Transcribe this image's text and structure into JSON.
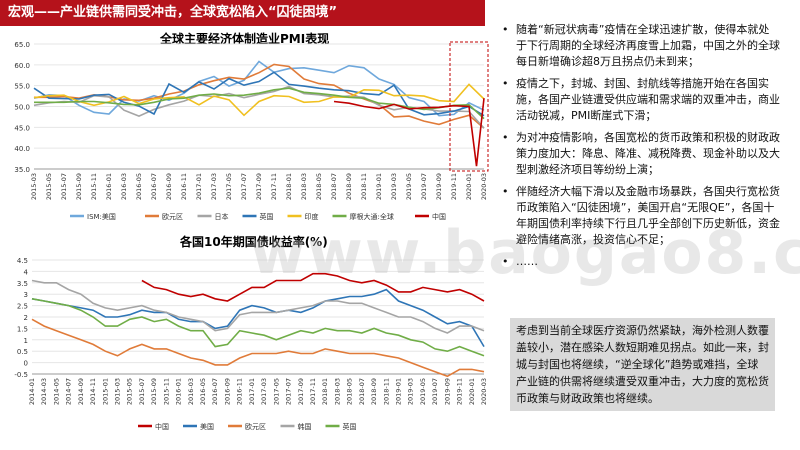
{
  "header": {
    "title": "宏观——产业链供需同受冲击，全球宽松陷入“囚徒困境”"
  },
  "watermark": "www.baogao8.com",
  "bullets": [
    "随着“新冠状病毒”疫情在全球迅速扩散，使得本就处于下行周期的全球经济再度雪上加霜，中国之外的全球每日新增确诊超8万且拐点仍未到来；",
    "疫情之下，封城、封国、封航线等措施开始在各国实施，各国产业链遭受供应端和需求端的双重冲击，商业活动锐减，PMI断崖式下滑；",
    "为对冲疫情影响，各国宽松的货币政策和积极的财政政策力度加大：降息、降准、减税降费、现金补助以及大型刺激经济项目等纷纷上演；",
    "伴随经济大幅下滑以及金融市场暴跌，各国央行宽松货币政策陷入“囚徒困境”，美国开启“无限QE”，各国十年期国债利率持续下行且几乎全部创下历史新低，资金避险情绪高涨，投资信心不足；",
    "……"
  ],
  "summary": "考虑到当前全球医疗资源仍然紧缺，海外检测人数覆盖较小，潜在感染人数短期难见拐点。如此一来，封城与封国也将继续，“逆全球化”趋势或难挡，全球产业链的供需将继续遭受双重冲击，大力度的宽松货币政策与财政政策也将继续。",
  "colors": {
    "brand": "#b5121b",
    "summary_bg": "#d9d9d9"
  },
  "chart_data": [
    {
      "type": "line",
      "title": "全球主要经济体制造业PMI表现",
      "xlabel": "",
      "ylabel": "",
      "ylim": [
        35.0,
        65.0
      ],
      "yticks": [
        "65.0",
        "60.0",
        "55.0",
        "50.0",
        "45.0",
        "40.0",
        "35.0"
      ],
      "x": [
        "2015-03",
        "2015-05",
        "2015-07",
        "2015-09",
        "2015-11",
        "2016-01",
        "2016-03",
        "2016-05",
        "2016-07",
        "2016-09",
        "2016-11",
        "2017-01",
        "2017-03",
        "2017-05",
        "2017-07",
        "2017-09",
        "2017-11",
        "2018-01",
        "2018-03",
        "2018-05",
        "2018-07",
        "2018-09",
        "2018-11",
        "2019-01",
        "2019-03",
        "2019-05",
        "2019-07",
        "2019-09",
        "2019-11",
        "2020-01",
        "2020-03"
      ],
      "grid": true,
      "legend": "bottom",
      "series": [
        {
          "name": "ISM:美国",
          "color": "#6fa8dc",
          "values": [
            52.0,
            52.8,
            52.6,
            50.3,
            48.6,
            48.2,
            51.8,
            51.3,
            52.6,
            51.5,
            53.2,
            56.0,
            57.2,
            54.9,
            56.3,
            60.8,
            58.2,
            59.1,
            59.3,
            58.7,
            58.1,
            59.8,
            59.3,
            56.6,
            55.3,
            52.1,
            51.2,
            47.8,
            48.1,
            50.9,
            49.1
          ]
        },
        {
          "name": "欧元区",
          "color": "#e07b39",
          "values": [
            52.2,
            52.2,
            52.4,
            52.0,
            52.8,
            52.3,
            51.6,
            51.5,
            52.0,
            53.0,
            53.7,
            55.2,
            56.2,
            57.0,
            56.6,
            58.1,
            60.1,
            59.6,
            56.6,
            55.5,
            55.1,
            53.2,
            51.8,
            50.5,
            47.5,
            47.7,
            46.5,
            45.7,
            46.9,
            47.9,
            44.8
          ]
        },
        {
          "name": "日本",
          "color": "#a5a5a5",
          "values": [
            50.3,
            50.9,
            51.2,
            51.0,
            52.6,
            52.3,
            49.1,
            47.7,
            49.3,
            50.4,
            51.3,
            52.7,
            52.4,
            53.1,
            52.1,
            52.9,
            53.6,
            54.8,
            53.1,
            52.8,
            52.3,
            52.5,
            52.2,
            50.3,
            49.2,
            49.8,
            49.4,
            48.9,
            48.9,
            48.8,
            44.8
          ]
        },
        {
          "name": "英国",
          "color": "#2e75b6",
          "values": [
            54.4,
            52.0,
            51.9,
            51.8,
            52.7,
            52.9,
            51.0,
            50.1,
            48.2,
            55.4,
            53.4,
            55.9,
            54.2,
            56.7,
            55.1,
            56.0,
            58.2,
            55.3,
            54.9,
            54.4,
            54.0,
            53.8,
            53.1,
            52.8,
            55.1,
            49.4,
            48.0,
            48.3,
            48.9,
            50.0,
            47.8
          ]
        },
        {
          "name": "印度",
          "color": "#f0c020",
          "values": [
            52.1,
            52.6,
            52.7,
            51.2,
            50.3,
            51.1,
            52.4,
            50.7,
            51.8,
            52.1,
            52.3,
            50.4,
            52.5,
            51.6,
            47.9,
            51.2,
            52.6,
            52.4,
            51.0,
            51.2,
            52.3,
            52.2,
            54.0,
            53.9,
            52.6,
            52.7,
            52.5,
            51.4,
            51.2,
            55.3,
            51.8
          ]
        },
        {
          "name": "摩根大通:全球",
          "color": "#70ad47",
          "values": [
            51.0,
            51.0,
            51.0,
            51.2,
            51.2,
            50.9,
            50.5,
            50.4,
            51.0,
            51.8,
            52.0,
            52.7,
            53.0,
            52.6,
            52.7,
            53.2,
            54.0,
            54.4,
            53.4,
            53.1,
            52.7,
            52.2,
            52.0,
            50.8,
            50.5,
            49.8,
            49.3,
            49.7,
            50.3,
            50.4,
            47.1
          ]
        },
        {
          "name": "中国",
          "color": "#c00000",
          "values": [
            null,
            null,
            null,
            null,
            null,
            null,
            null,
            null,
            null,
            null,
            null,
            null,
            null,
            null,
            null,
            null,
            null,
            null,
            null,
            null,
            51.2,
            50.8,
            50.0,
            49.5,
            50.5,
            49.4,
            49.7,
            49.8,
            50.2,
            50.0,
            52.0
          ],
          "dip": [
            {
              "x": "2020-02",
              "y": 35.7
            }
          ]
        }
      ]
    },
    {
      "type": "line",
      "title": "各国10年期国债收益率(%)",
      "xlabel": "",
      "ylabel": "",
      "ylim": [
        -0.5,
        4.5
      ],
      "yticks": [
        "4.5",
        "4",
        "3.5",
        "3",
        "2.5",
        "2",
        "1.5",
        "1",
        "0.5",
        "0",
        "-0.5"
      ],
      "x": [
        "2014-01",
        "2014-03",
        "2014-05",
        "2014-07",
        "2014-09",
        "2014-11",
        "2015-01",
        "2015-03",
        "2015-05",
        "2015-07",
        "2015-09",
        "2015-11",
        "2016-01",
        "2016-03",
        "2016-05",
        "2016-07",
        "2016-09",
        "2016-11",
        "2017-01",
        "2017-03",
        "2017-05",
        "2017-07",
        "2017-09",
        "2017-11",
        "2018-01",
        "2018-03",
        "2018-05",
        "2018-07",
        "2018-09",
        "2018-11",
        "2019-01",
        "2019-03",
        "2019-05",
        "2019-07",
        "2019-09",
        "2019-11",
        "2020-01",
        "2020-03"
      ],
      "grid": true,
      "legend": "bottom",
      "series": [
        {
          "name": "中国",
          "color": "#c00000",
          "values": [
            null,
            null,
            null,
            null,
            null,
            null,
            null,
            null,
            null,
            3.6,
            3.3,
            3.2,
            3.0,
            2.9,
            3.0,
            2.8,
            2.7,
            3.0,
            3.3,
            3.3,
            3.6,
            3.6,
            3.6,
            3.9,
            3.9,
            3.8,
            3.6,
            3.5,
            3.6,
            3.4,
            3.1,
            3.1,
            3.3,
            3.2,
            3.1,
            3.2,
            3.0,
            2.7
          ]
        },
        {
          "name": "美国",
          "color": "#2e75b6",
          "values": [
            2.8,
            2.7,
            2.6,
            2.5,
            2.4,
            2.3,
            2.0,
            2.0,
            2.1,
            2.3,
            2.2,
            2.2,
            1.9,
            1.8,
            1.8,
            1.5,
            1.6,
            2.3,
            2.5,
            2.4,
            2.2,
            2.3,
            2.2,
            2.4,
            2.7,
            2.8,
            2.9,
            2.9,
            3.0,
            3.2,
            2.7,
            2.5,
            2.3,
            2.0,
            1.7,
            1.8,
            1.6,
            0.7
          ]
        },
        {
          "name": "欧元区",
          "color": "#e07b39",
          "values": [
            1.9,
            1.6,
            1.4,
            1.2,
            1.0,
            0.8,
            0.5,
            0.3,
            0.6,
            0.8,
            0.6,
            0.6,
            0.4,
            0.2,
            0.1,
            -0.1,
            -0.1,
            0.2,
            0.4,
            0.4,
            0.4,
            0.5,
            0.4,
            0.4,
            0.6,
            0.5,
            0.4,
            0.4,
            0.4,
            0.3,
            0.2,
            0.0,
            -0.2,
            -0.4,
            -0.6,
            -0.3,
            -0.3,
            -0.4
          ]
        },
        {
          "name": "韩国",
          "color": "#a5a5a5",
          "values": [
            3.6,
            3.5,
            3.5,
            3.2,
            3.0,
            2.6,
            2.4,
            2.3,
            2.4,
            2.5,
            2.3,
            2.2,
            2.0,
            1.9,
            1.8,
            1.4,
            1.5,
            2.1,
            2.2,
            2.2,
            2.2,
            2.3,
            2.4,
            2.5,
            2.7,
            2.7,
            2.6,
            2.6,
            2.4,
            2.2,
            2.0,
            2.0,
            1.8,
            1.5,
            1.3,
            1.6,
            1.6,
            1.4
          ]
        },
        {
          "name": "英国",
          "color": "#70ad47",
          "values": [
            2.8,
            2.7,
            2.6,
            2.5,
            2.3,
            2.0,
            1.6,
            1.6,
            1.9,
            2.0,
            1.8,
            1.9,
            1.6,
            1.4,
            1.4,
            0.7,
            0.8,
            1.4,
            1.3,
            1.2,
            1.0,
            1.2,
            1.4,
            1.3,
            1.5,
            1.4,
            1.4,
            1.3,
            1.5,
            1.3,
            1.2,
            1.0,
            0.9,
            0.6,
            0.5,
            0.7,
            0.5,
            0.3
          ]
        }
      ]
    }
  ]
}
